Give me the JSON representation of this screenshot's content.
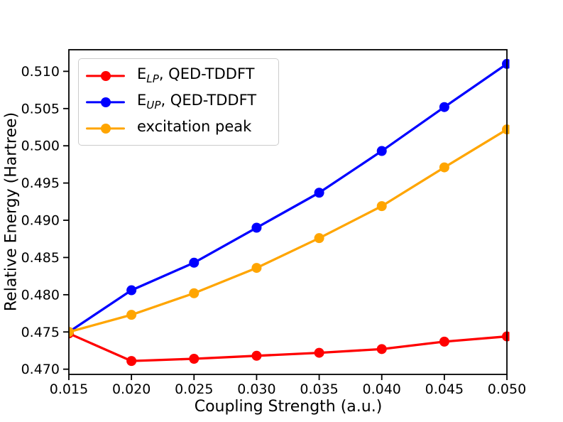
{
  "figure": {
    "background_color": "#ffffff",
    "frame_color": "#000000",
    "legend_border_color": "#cccccc"
  },
  "chart_data": {
    "type": "line",
    "title": "",
    "xlabel": "Coupling Strength (a.u.)",
    "ylabel": "Relative Energy (Hartree)",
    "x": [
      0.015,
      0.02,
      0.025,
      0.03,
      0.035,
      0.04,
      0.045,
      0.05
    ],
    "series": [
      {
        "name": "E_LP, QED-TDDFT",
        "label": {
          "pre": "E",
          "sub": "LP",
          "post": ", QED-TDDFT"
        },
        "color": "#ff0000",
        "marker": "circle",
        "values": [
          0.4748,
          0.4711,
          0.4714,
          0.4718,
          0.4722,
          0.4727,
          0.4737,
          0.4744
        ]
      },
      {
        "name": "E_UP, QED-TDDFT",
        "label": {
          "pre": "E",
          "sub": "UP",
          "post": ", QED-TDDFT"
        },
        "color": "#0000ff",
        "marker": "circle",
        "values": [
          0.475,
          0.4806,
          0.4843,
          0.489,
          0.4937,
          0.4993,
          0.5052,
          0.511
        ]
      },
      {
        "name": "excitation peak",
        "label": {
          "pre": "excitation peak",
          "sub": "",
          "post": ""
        },
        "color": "#ffa500",
        "marker": "circle",
        "values": [
          0.475,
          0.4773,
          0.4802,
          0.4836,
          0.4876,
          0.4919,
          0.4971,
          0.5022
        ]
      }
    ],
    "xlim": [
      0.015,
      0.05
    ],
    "ylim": [
      0.4693,
      0.5129
    ],
    "xticks": [
      "0.015",
      "0.020",
      "0.025",
      "0.030",
      "0.035",
      "0.040",
      "0.045",
      "0.050"
    ],
    "yticks": [
      "0.470",
      "0.475",
      "0.480",
      "0.485",
      "0.490",
      "0.495",
      "0.500",
      "0.505",
      "0.510"
    ],
    "grid": false,
    "legend_position": "upper left"
  }
}
